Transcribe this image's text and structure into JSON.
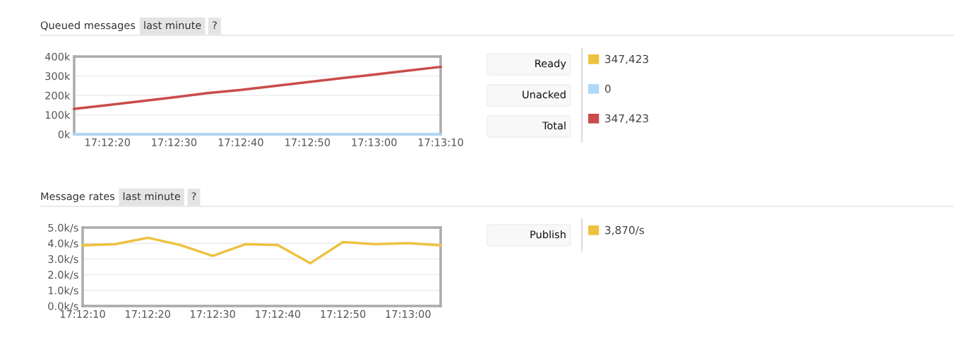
{
  "chart_data": [
    {
      "type": "line",
      "title": "Queued messages",
      "subtitle": "last minute",
      "x": [
        17.20417,
        17.20556,
        17.20694,
        17.20833,
        17.20972,
        17.21111,
        17.2125,
        17.21389,
        17.21528,
        17.21667,
        17.21806,
        17.21944
      ],
      "series": [
        {
          "name": "Ready",
          "color": "#edc240",
          "values": [
            null,
            null,
            null,
            null,
            null,
            null,
            null,
            null,
            null,
            null,
            null,
            null
          ]
        },
        {
          "name": "Unacked",
          "color": "#afd8f8",
          "values": [
            0,
            0,
            0,
            0,
            0,
            0,
            0,
            0,
            0,
            0,
            0,
            0
          ]
        },
        {
          "name": "Total",
          "color": "#cb4b4b",
          "values": [
            131000,
            150000,
            170000,
            190000,
            212000,
            228000,
            248000,
            268000,
            288000,
            307000,
            327000,
            347000
          ]
        }
      ],
      "xlim": [
        17.20417,
        17.21944
      ],
      "ylim": [
        0,
        400000
      ],
      "xticks": [
        {
          "value": 17.20556,
          "label": "17:12:20"
        },
        {
          "value": 17.20833,
          "label": "17:12:30"
        },
        {
          "value": 17.21111,
          "label": "17:12:40"
        },
        {
          "value": 17.21389,
          "label": "17:12:50"
        },
        {
          "value": 17.21667,
          "label": "17:13:00"
        },
        {
          "value": 17.21944,
          "label": "17:13:10"
        }
      ],
      "yticks": [
        {
          "value": 0,
          "label": "0k"
        },
        {
          "value": 100000,
          "label": "100k"
        },
        {
          "value": 200000,
          "label": "200k"
        },
        {
          "value": 300000,
          "label": "300k"
        },
        {
          "value": 400000,
          "label": "400k"
        }
      ],
      "grid": "y",
      "legend": "right",
      "marker": "none",
      "annotations": [
        "?",
        "347,423",
        "0",
        "347,423"
      ]
    },
    {
      "type": "line",
      "title": "Message rates",
      "subtitle": "last minute",
      "x": [
        17.20278,
        17.20417,
        17.20556,
        17.20694,
        17.20833,
        17.20972,
        17.21111,
        17.2125,
        17.21389,
        17.21528,
        17.21667,
        17.21806
      ],
      "series": [
        {
          "name": "Publish",
          "color": "#edc240",
          "values": [
            3870,
            3940,
            4350,
            3890,
            3190,
            3940,
            3890,
            2730,
            4080,
            3940,
            4010,
            3870
          ]
        }
      ],
      "xlim": [
        17.20278,
        17.21806
      ],
      "ylim": [
        0,
        5000
      ],
      "xticks": [
        {
          "value": 17.20278,
          "label": "17:12:10"
        },
        {
          "value": 17.20556,
          "label": "17:12:20"
        },
        {
          "value": 17.20833,
          "label": "17:12:30"
        },
        {
          "value": 17.21111,
          "label": "17:12:40"
        },
        {
          "value": 17.21389,
          "label": "17:12:50"
        },
        {
          "value": 17.21667,
          "label": "17:13:00"
        }
      ],
      "yticks": [
        {
          "value": 0,
          "label": "0.0k/s"
        },
        {
          "value": 1000,
          "label": "1.0k/s"
        },
        {
          "value": 2000,
          "label": "2.0k/s"
        },
        {
          "value": 3000,
          "label": "3.0k/s"
        },
        {
          "value": 4000,
          "label": "4.0k/s"
        },
        {
          "value": 5000,
          "label": "5.0k/s"
        }
      ],
      "grid": "y",
      "legend": "right",
      "marker": "none",
      "annotations": [
        "?",
        "3,870/s"
      ]
    }
  ]
}
